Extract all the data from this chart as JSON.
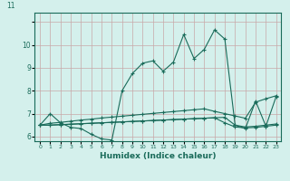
{
  "title": "",
  "xlabel": "Humidex (Indice chaleur)",
  "xlim": [
    -0.5,
    23.5
  ],
  "ylim": [
    5.8,
    11.4
  ],
  "xticks": [
    0,
    1,
    2,
    3,
    4,
    5,
    6,
    7,
    8,
    9,
    10,
    11,
    12,
    13,
    14,
    15,
    16,
    17,
    18,
    19,
    20,
    21,
    22,
    23
  ],
  "yticks": [
    6,
    7,
    8,
    9,
    10,
    11
  ],
  "bg_color": "#d4f0ec",
  "grid_color_h": "#c8a8a8",
  "grid_color_v": "#c8a8a8",
  "line_color": "#1a6b5a",
  "lines": [
    {
      "x": [
        0,
        1,
        2,
        3,
        4,
        5,
        6,
        7,
        8,
        9,
        10,
        11,
        12,
        13,
        14,
        15,
        16,
        17,
        18,
        19,
        20,
        21,
        22,
        23
      ],
      "y": [
        6.5,
        7.0,
        6.6,
        6.4,
        6.35,
        6.1,
        5.9,
        5.85,
        8.0,
        8.75,
        9.2,
        9.3,
        8.85,
        9.25,
        10.45,
        9.4,
        9.8,
        10.65,
        10.25,
        6.5,
        6.35,
        7.55,
        6.45,
        7.75
      ]
    },
    {
      "x": [
        0,
        1,
        2,
        3,
        4,
        5,
        6,
        7,
        8,
        9,
        10,
        11,
        12,
        13,
        14,
        15,
        16,
        17,
        18,
        19,
        20,
        21,
        22,
        23
      ],
      "y": [
        6.5,
        6.58,
        6.62,
        6.67,
        6.72,
        6.76,
        6.81,
        6.85,
        6.89,
        6.93,
        6.97,
        7.01,
        7.05,
        7.09,
        7.13,
        7.17,
        7.21,
        7.1,
        7.0,
        6.9,
        6.8,
        7.5,
        7.65,
        7.78
      ]
    },
    {
      "x": [
        0,
        1,
        2,
        3,
        4,
        5,
        6,
        7,
        8,
        9,
        10,
        11,
        12,
        13,
        14,
        15,
        16,
        17,
        18,
        19,
        20,
        21,
        22,
        23
      ],
      "y": [
        6.5,
        6.5,
        6.52,
        6.54,
        6.56,
        6.58,
        6.6,
        6.62,
        6.64,
        6.66,
        6.68,
        6.7,
        6.72,
        6.74,
        6.76,
        6.78,
        6.8,
        6.82,
        6.84,
        6.5,
        6.42,
        6.45,
        6.5,
        6.55
      ]
    },
    {
      "x": [
        0,
        1,
        2,
        3,
        4,
        5,
        6,
        7,
        8,
        9,
        10,
        11,
        12,
        13,
        14,
        15,
        16,
        17,
        18,
        19,
        20,
        21,
        22,
        23
      ],
      "y": [
        6.5,
        6.5,
        6.52,
        6.54,
        6.56,
        6.58,
        6.6,
        6.62,
        6.64,
        6.66,
        6.68,
        6.7,
        6.72,
        6.74,
        6.76,
        6.78,
        6.8,
        6.82,
        6.6,
        6.42,
        6.38,
        6.4,
        6.45,
        6.5
      ]
    }
  ]
}
